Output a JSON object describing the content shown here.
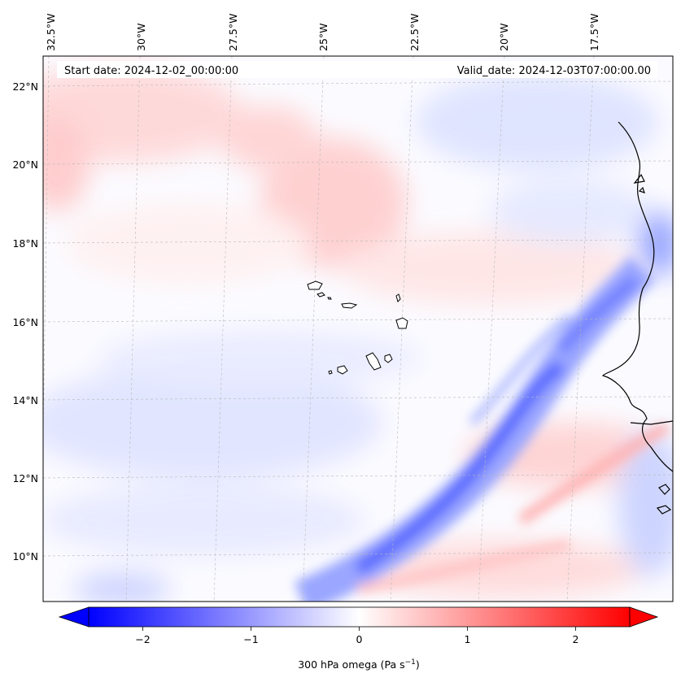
{
  "header": {
    "start_date": "Start date: 2024-12-02_00:00:00",
    "valid_date": "Valid_date: 2024-12-03T07:00:00.00"
  },
  "map": {
    "lon_ticks": [
      "32.5°W",
      "30°W",
      "27.5°W",
      "25°W",
      "22.5°W",
      "20°W",
      "17.5°W"
    ],
    "lat_ticks": [
      "22°N",
      "20°N",
      "18°N",
      "16°N",
      "14°N",
      "12°N",
      "10°N"
    ],
    "gridlines": true,
    "colors": {
      "negative": "#0000ff",
      "zero": "#ffffff",
      "positive": "#ff0000",
      "coastline": "#000000",
      "gridline": "#b0b0b0"
    }
  },
  "colorbar": {
    "label": "300 hPa omega (Pa s",
    "label_exp": "−1",
    "label_close": ")",
    "tick_labels": [
      "−2",
      "−1",
      "0",
      "1",
      "2"
    ],
    "range": [
      -2.5,
      2.5
    ],
    "tick_values": [
      -2,
      -1,
      0,
      1,
      2
    ]
  }
}
